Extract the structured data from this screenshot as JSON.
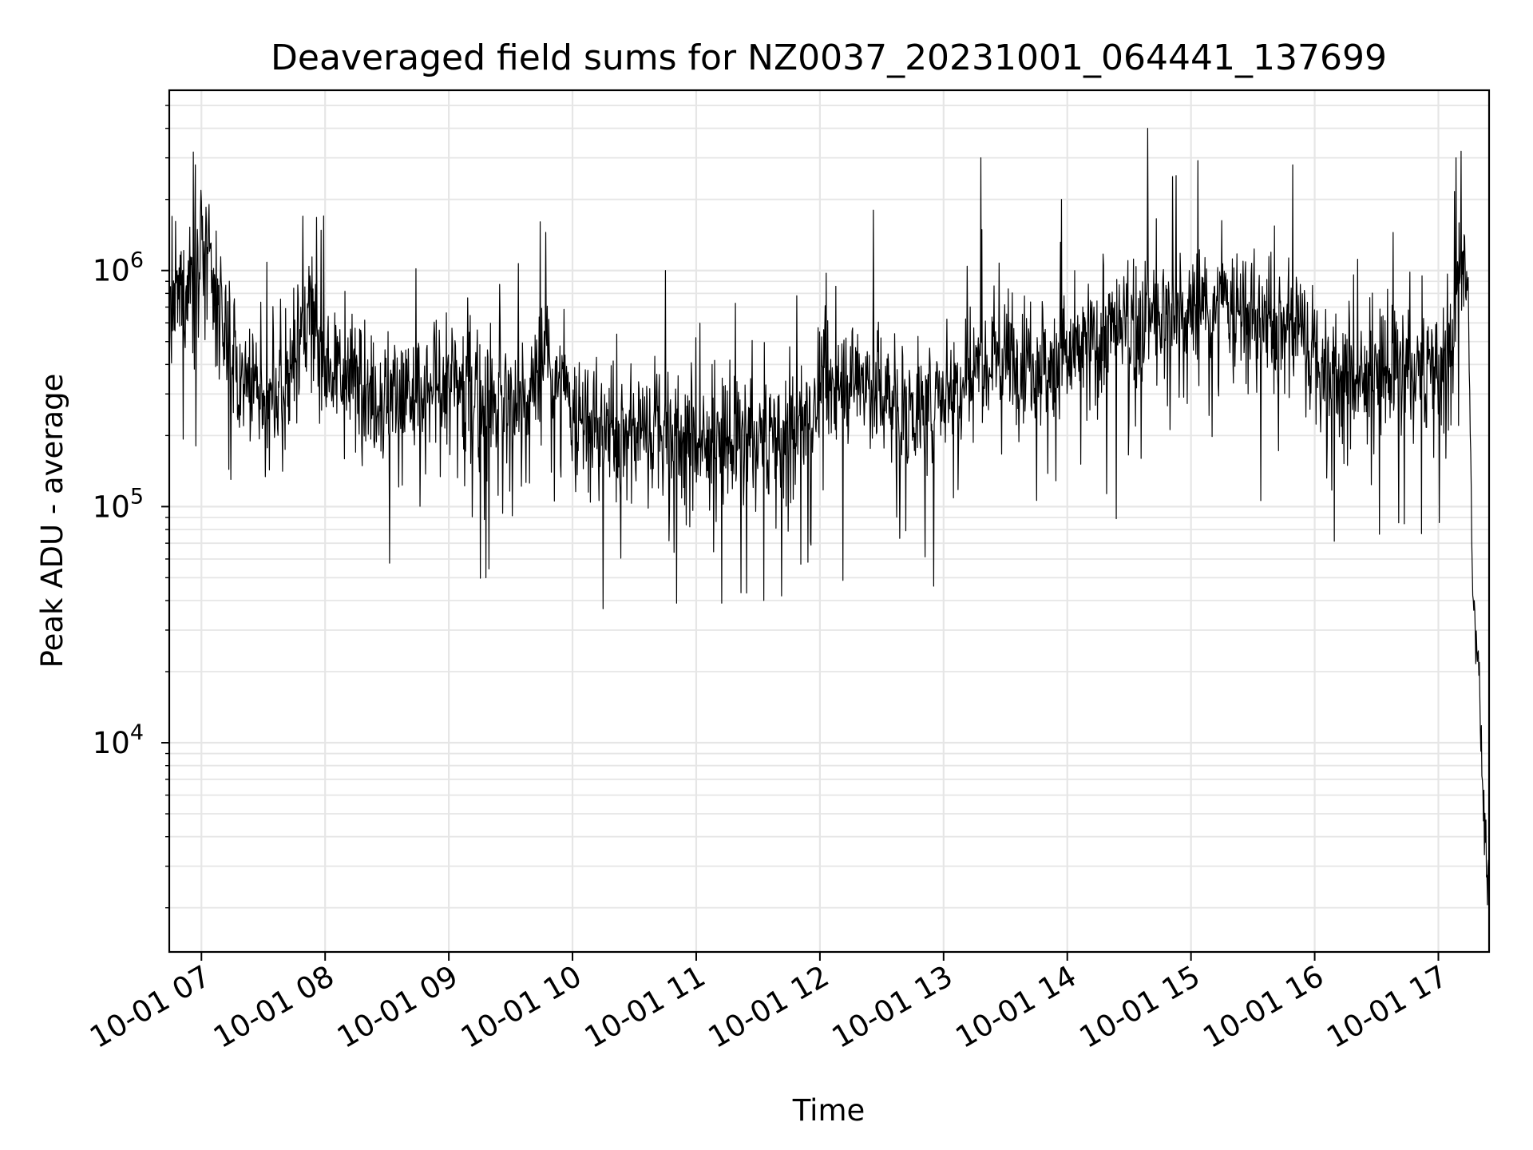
{
  "chart_data": {
    "type": "line",
    "title": "Deaveraged field sums for NZ0037_20231001_064441_137699",
    "xlabel": "Time",
    "ylabel": "Peak ADU - average",
    "yscale": "log",
    "grid": true,
    "x_tick_labels": [
      "10-01 07",
      "10-01 08",
      "10-01 09",
      "10-01 10",
      "10-01 11",
      "10-01 12",
      "10-01 13",
      "10-01 14",
      "10-01 15",
      "10-01 16",
      "10-01 17"
    ],
    "y_tick_labels": [
      {
        "base": "10",
        "exp": "4",
        "value": 10000
      },
      {
        "base": "10",
        "exp": "5",
        "value": 100000
      },
      {
        "base": "10",
        "exp": "6",
        "value": 1000000
      }
    ],
    "x_hours_range": [
      6.74,
      17.41
    ],
    "ylim": [
      1300,
      5800000
    ],
    "series": [
      {
        "color": "#000000",
        "x_hours": [
          6.75,
          6.9,
          7.0,
          7.15,
          7.3,
          7.5,
          7.7,
          7.85,
          8.0,
          8.2,
          8.5,
          8.8,
          9.0,
          9.3,
          9.6,
          9.8,
          10.0,
          10.3,
          10.6,
          10.9,
          11.0,
          11.3,
          11.6,
          11.9,
          12.0,
          12.3,
          12.6,
          12.9,
          13.0,
          13.3,
          13.6,
          13.9,
          14.0,
          14.3,
          14.6,
          14.9,
          15.0,
          15.3,
          15.6,
          15.9,
          16.0,
          16.3,
          16.6,
          16.9,
          17.0,
          17.1,
          17.18,
          17.24,
          17.28,
          17.32,
          17.36,
          17.4
        ],
        "values": [
          650000,
          900000,
          1300000,
          700000,
          350000,
          260000,
          330000,
          650000,
          450000,
          350000,
          300000,
          280000,
          350000,
          280000,
          260000,
          420000,
          240000,
          200000,
          220000,
          200000,
          190000,
          190000,
          200000,
          220000,
          300000,
          360000,
          280000,
          250000,
          320000,
          420000,
          450000,
          400000,
          420000,
          520000,
          600000,
          620000,
          650000,
          700000,
          580000,
          600000,
          400000,
          350000,
          380000,
          380000,
          420000,
          430000,
          1000000,
          850000,
          40000,
          25000,
          6000,
          2500
        ]
      }
    ],
    "notable_peaks": {
      "x_hours": [
        6.95,
        7.82,
        9.78,
        10.75,
        12.43,
        13.3,
        13.95,
        14.65,
        14.85,
        15.82,
        17.14,
        17.18
      ],
      "values": [
        2800000,
        1700000,
        1450000,
        1000000,
        1800000,
        3000000,
        2000000,
        4000000,
        2500000,
        2800000,
        3000000,
        3200000
      ]
    }
  }
}
